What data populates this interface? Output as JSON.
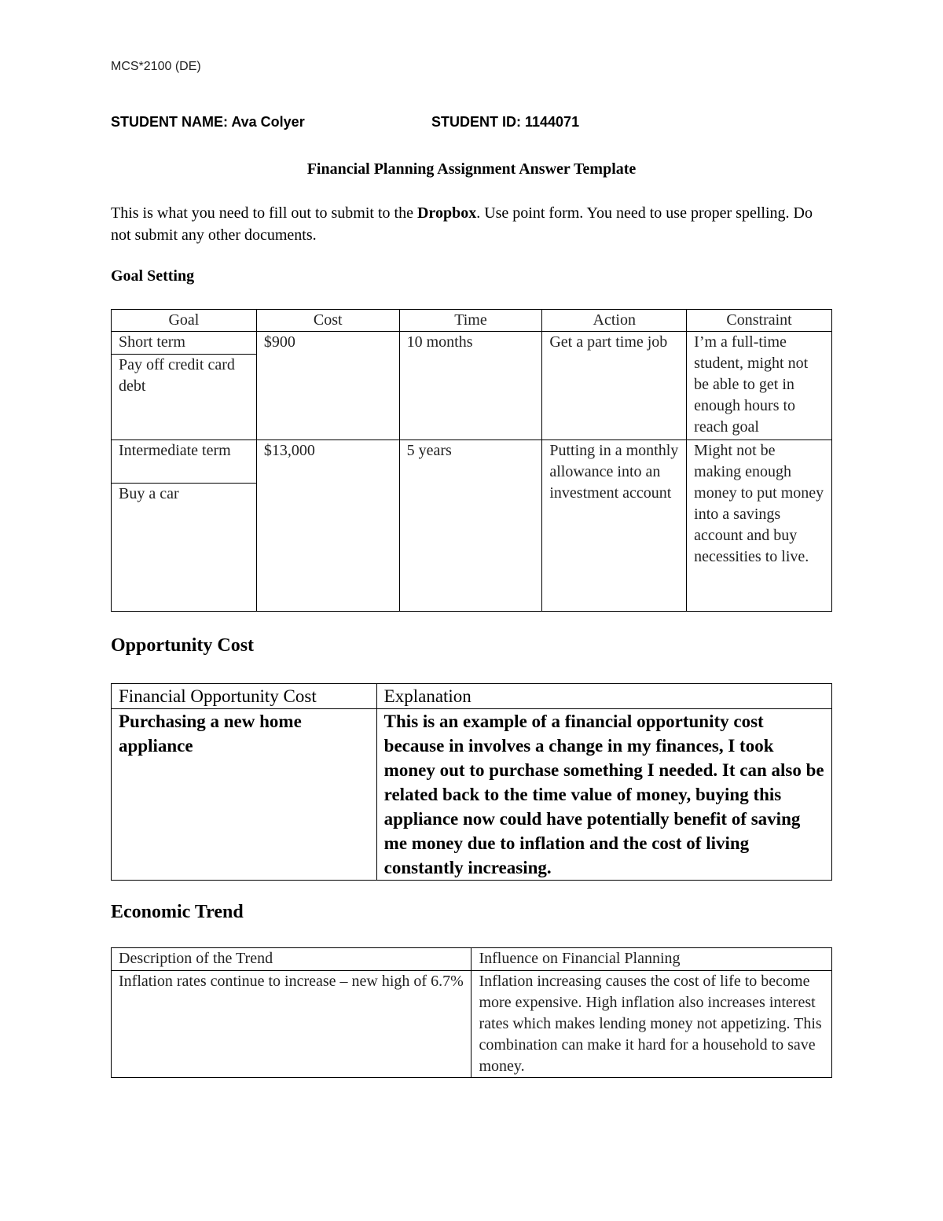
{
  "header": {
    "course": "MCS*2100 (DE)"
  },
  "student": {
    "name_label": "STUDENT NAME: Ava Colyer",
    "id_label": "STUDENT ID: 1144071"
  },
  "title": "Financial Planning Assignment Answer Template",
  "intro": {
    "before": "This is what you need to fill out to submit to the ",
    "bold": "Dropbox",
    "after": ". Use point form.  You need to use proper spelling.  Do not submit any other documents."
  },
  "goal_setting": {
    "heading": "Goal Setting",
    "headers": [
      "Goal",
      "Cost",
      "Time",
      "Action",
      "Constraint"
    ],
    "rows": [
      {
        "term": "Short term",
        "goal": "Pay off credit card debt",
        "cost": "$900",
        "time": "10 months",
        "action": "Get a part time job",
        "constraint": "I’m a full-time student, might not be able to get in enough hours to reach goal"
      },
      {
        "term": "Intermediate term",
        "goal": "Buy a car",
        "cost": "$13,000",
        "time": "5 years",
        "action": "Putting in a monthly allowance into an investment account",
        "constraint": "Might not be making enough money to put money into a savings account and buy necessities to live."
      }
    ]
  },
  "opportunity_cost": {
    "heading": "Opportunity Cost",
    "headers": [
      "Financial Opportunity Cost",
      "Explanation"
    ],
    "cost": " Purchasing a new home appliance",
    "explanation": "This is an example of a financial opportunity cost because in involves a change in my finances, I took money out to purchase something I needed. It can also be related back to the time value of money, buying this appliance now could have potentially benefit of saving me money due to inflation and the cost of living constantly increasing."
  },
  "economic_trend": {
    "heading": "Economic Trend",
    "headers": [
      "Description of the Trend",
      "Influence on Financial Planning"
    ],
    "description": "Inflation rates continue to increase – new high of 6.7%",
    "influence": "Inflation increasing causes the cost of life to become more expensive. High inflation also increases interest rates which makes lending money not appetizing. This combination can make it hard for a household to save money."
  }
}
